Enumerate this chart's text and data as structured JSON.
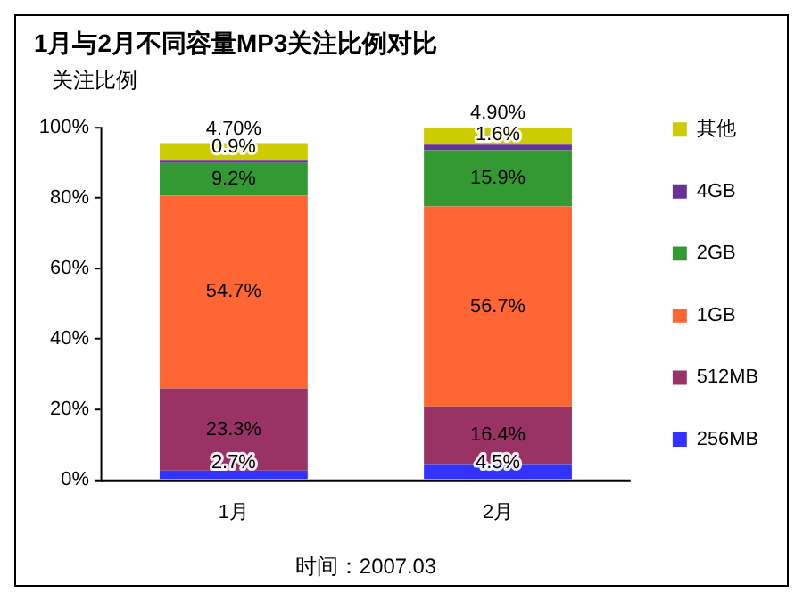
{
  "chart_data": {
    "type": "bar",
    "title": "1月与2月不同容量MP3关注比例对比",
    "ylabel": "关注比例",
    "categories": [
      "1月",
      "2月"
    ],
    "stacked": true,
    "series": [
      {
        "name": "256MB",
        "color": "#3333ff",
        "values": [
          2.7,
          4.5
        ],
        "value_labels": [
          "2.7%",
          "4.5%"
        ]
      },
      {
        "name": "512MB",
        "color": "#993366",
        "values": [
          23.3,
          16.4
        ],
        "value_labels": [
          "23.3%",
          "16.4%"
        ]
      },
      {
        "name": "1GB",
        "color": "#ff6633",
        "values": [
          54.7,
          56.7
        ],
        "value_labels": [
          "54.7%",
          "56.7%"
        ]
      },
      {
        "name": "2GB",
        "color": "#339933",
        "values": [
          9.2,
          15.9
        ],
        "value_labels": [
          "9.2%",
          "15.9%"
        ]
      },
      {
        "name": "4GB",
        "color": "#663399",
        "values": [
          0.9,
          1.6
        ],
        "value_labels": [
          "0.9%",
          "1.6%"
        ]
      },
      {
        "name": "其他",
        "color": "#cccc00",
        "values": [
          4.7,
          4.9
        ],
        "value_labels": [
          "4.70%",
          "4.90%"
        ]
      }
    ],
    "ylim": [
      0,
      100
    ],
    "yticks": [
      {
        "value": 0,
        "label": "0%"
      },
      {
        "value": 20,
        "label": "20%"
      },
      {
        "value": 40,
        "label": "40%"
      },
      {
        "value": 60,
        "label": "60%"
      },
      {
        "value": 80,
        "label": "80%"
      },
      {
        "value": 100,
        "label": "100%"
      }
    ],
    "grid": false,
    "legend": "right",
    "annotations": [
      "时间：2007.03"
    ]
  }
}
